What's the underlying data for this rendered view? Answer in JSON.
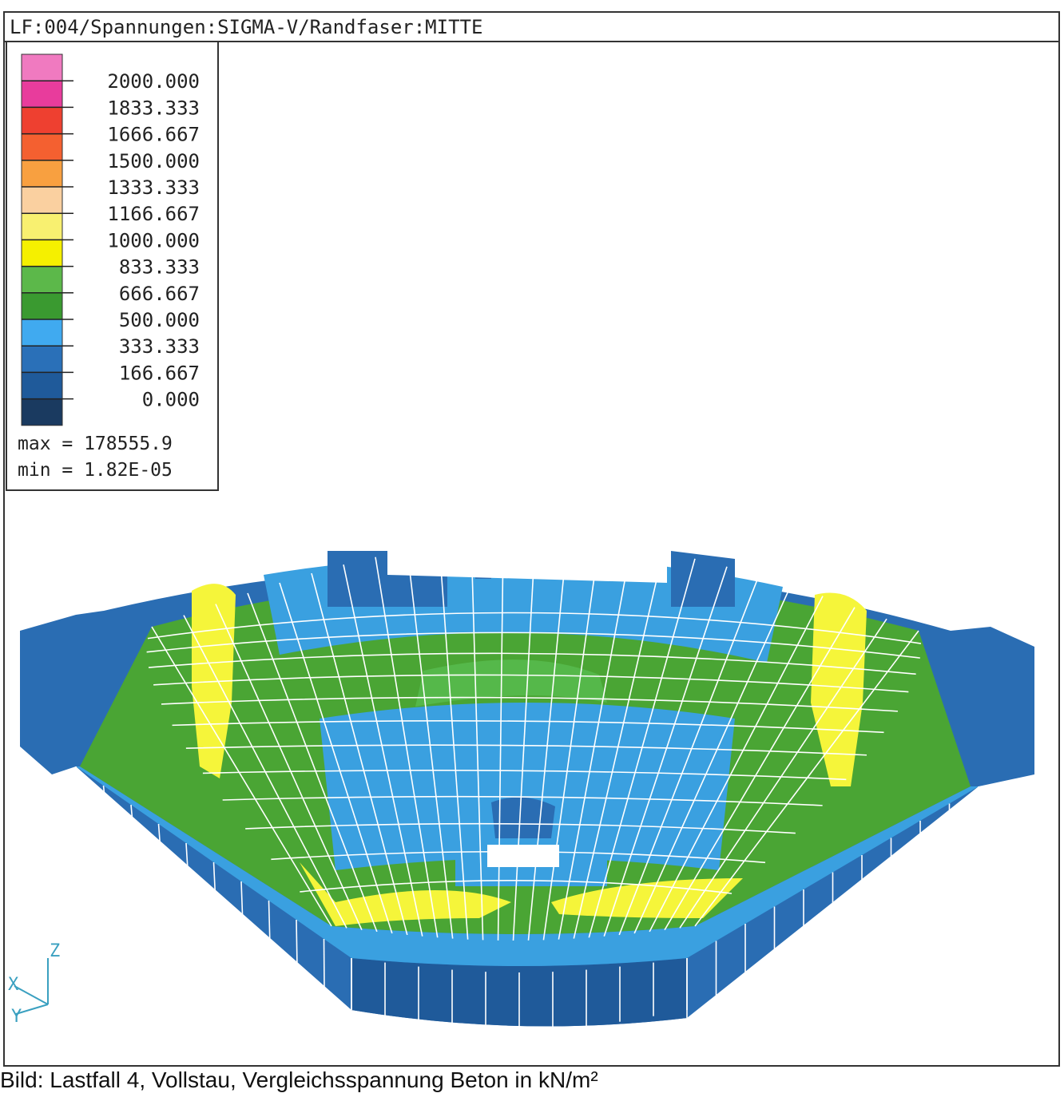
{
  "header": {
    "title": "LF:004/Spannungen:SIGMA-V/Randfaser:MITTE"
  },
  "legend": {
    "labels": [
      "2000.000",
      "1833.333",
      "1666.667",
      "1500.000",
      "1333.333",
      "1166.667",
      "1000.000",
      "833.333",
      "666.667",
      "500.000",
      "333.333",
      "166.667",
      "0.000"
    ],
    "max": "max = 178555.9",
    "min": "min = 1.82E-05"
  },
  "axes": {
    "z": "Z",
    "x": "X",
    "y": "Y"
  },
  "caption": "Bild: Lastfall 4, Vollstau, Vergleichsspannung Beton in kN/m²"
}
